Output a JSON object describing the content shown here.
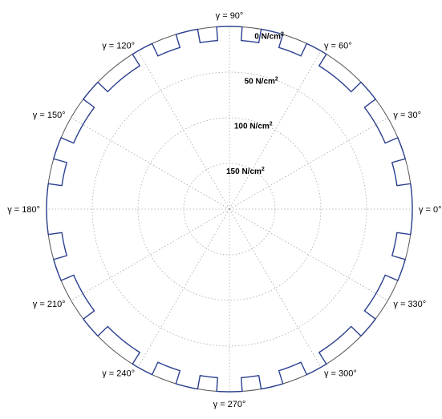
{
  "chart_data": {
    "type": "polar",
    "angle_unit": "degrees",
    "angle_labels": [
      {
        "angle": 0,
        "text": "γ = 0°"
      },
      {
        "angle": 30,
        "text": "γ = 30°"
      },
      {
        "angle": 60,
        "text": "γ = 60°"
      },
      {
        "angle": 90,
        "text": "γ = 90°"
      },
      {
        "angle": 120,
        "text": "γ = 120°"
      },
      {
        "angle": 150,
        "text": "γ = 150°"
      },
      {
        "angle": 180,
        "text": "γ = 180°"
      },
      {
        "angle": 210,
        "text": "γ = 210°"
      },
      {
        "angle": 240,
        "text": "γ = 240°"
      },
      {
        "angle": 270,
        "text": "γ = 270°"
      },
      {
        "angle": 300,
        "text": "γ = 300°"
      },
      {
        "angle": 330,
        "text": "γ = 330°"
      }
    ],
    "radial_axis": {
      "direction": "inward",
      "max": 200,
      "ticks": [
        {
          "value": 0,
          "text": "0 N/cm",
          "sup": "2"
        },
        {
          "value": 50,
          "text": "50 N/cm",
          "sup": "2"
        },
        {
          "value": 100,
          "text": "100 N/cm",
          "sup": "2"
        },
        {
          "value": 150,
          "text": "150 N/cm",
          "sup": "2"
        }
      ]
    },
    "grid": true,
    "series": [
      {
        "color": "#2b3f8f",
        "baseline": 0,
        "points": [
          [
            0,
            0
          ],
          [
            8,
            0
          ],
          [
            8,
            15
          ],
          [
            16,
            15
          ],
          [
            16,
            0
          ],
          [
            23,
            0
          ],
          [
            23,
            15
          ],
          [
            37,
            15
          ],
          [
            37,
            0
          ],
          [
            44,
            0
          ],
          [
            44,
            15
          ],
          [
            58,
            15
          ],
          [
            58,
            0
          ],
          [
            65,
            0
          ],
          [
            65,
            15
          ],
          [
            73,
            15
          ],
          [
            73,
            0
          ],
          [
            80,
            0
          ],
          [
            80,
            15
          ],
          [
            86,
            15
          ],
          [
            86,
            0
          ],
          [
            94,
            0
          ],
          [
            94,
            15
          ],
          [
            100,
            15
          ],
          [
            100,
            0
          ],
          [
            107,
            0
          ],
          [
            107,
            15
          ],
          [
            115,
            15
          ],
          [
            115,
            0
          ],
          [
            122,
            0
          ],
          [
            122,
            15
          ],
          [
            136,
            15
          ],
          [
            136,
            0
          ],
          [
            143,
            0
          ],
          [
            143,
            15
          ],
          [
            157,
            15
          ],
          [
            157,
            0
          ],
          [
            164,
            0
          ],
          [
            164,
            15
          ],
          [
            172,
            15
          ],
          [
            172,
            0
          ],
          [
            188,
            0
          ],
          [
            188,
            15
          ],
          [
            196,
            15
          ],
          [
            196,
            0
          ],
          [
            203,
            0
          ],
          [
            203,
            15
          ],
          [
            217,
            15
          ],
          [
            217,
            0
          ],
          [
            224,
            0
          ],
          [
            224,
            15
          ],
          [
            238,
            15
          ],
          [
            238,
            0
          ],
          [
            245,
            0
          ],
          [
            245,
            15
          ],
          [
            253,
            15
          ],
          [
            253,
            0
          ],
          [
            260,
            0
          ],
          [
            260,
            15
          ],
          [
            266,
            15
          ],
          [
            266,
            0
          ],
          [
            274,
            0
          ],
          [
            274,
            15
          ],
          [
            280,
            15
          ],
          [
            280,
            0
          ],
          [
            287,
            0
          ],
          [
            287,
            15
          ],
          [
            295,
            15
          ],
          [
            295,
            0
          ],
          [
            302,
            0
          ],
          [
            302,
            15
          ],
          [
            316,
            15
          ],
          [
            316,
            0
          ],
          [
            323,
            0
          ],
          [
            323,
            15
          ],
          [
            337,
            15
          ],
          [
            337,
            0
          ],
          [
            344,
            0
          ],
          [
            344,
            15
          ],
          [
            352,
            15
          ],
          [
            352,
            0
          ],
          [
            360,
            0
          ]
        ]
      }
    ]
  }
}
